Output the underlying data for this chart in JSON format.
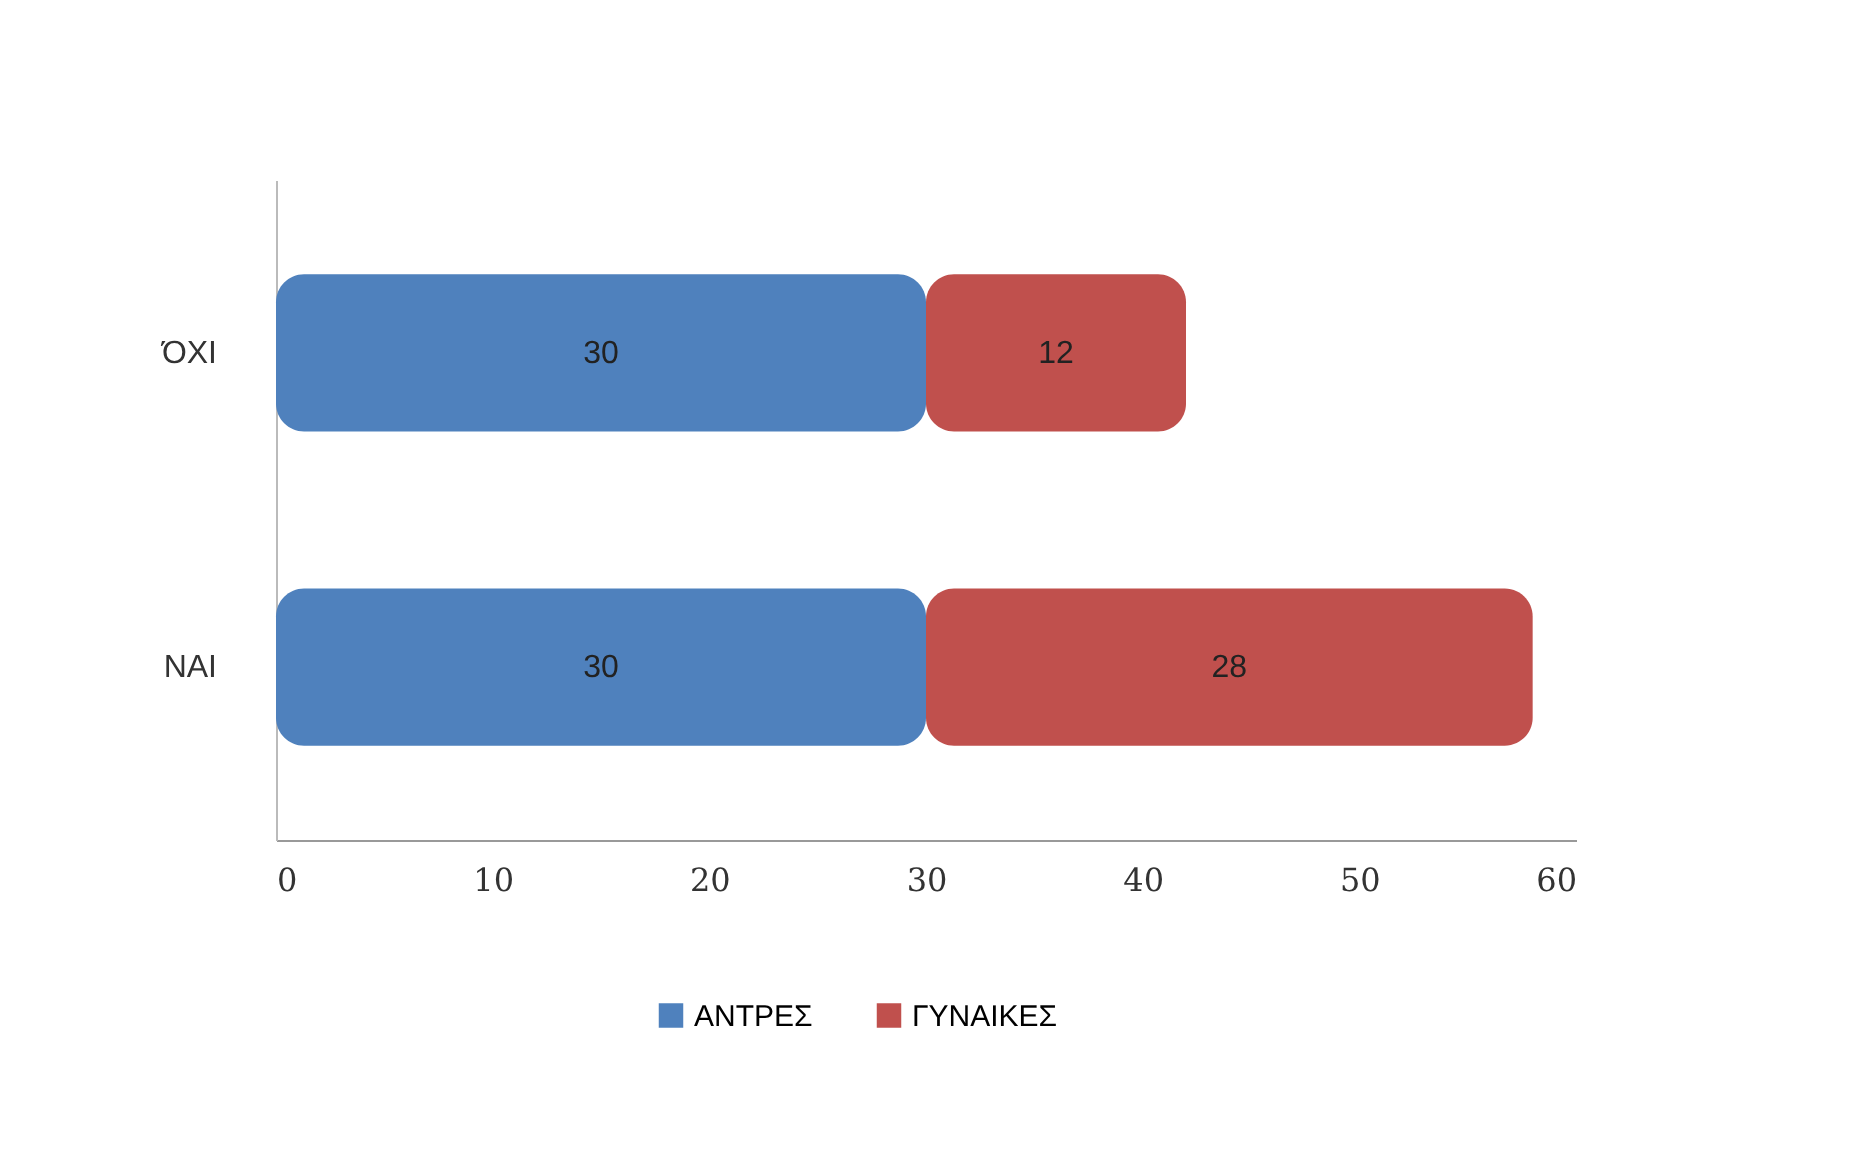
{
  "chart_data": {
    "type": "bar",
    "orientation": "horizontal",
    "stacked": true,
    "categories": [
      "ΌΧΙ",
      "ΝΑΙ"
    ],
    "series": [
      {
        "name": "ΑΝΤΡΕΣ",
        "color": "#4f81bd",
        "values": [
          30,
          30
        ]
      },
      {
        "name": "ΓΥΝΑΙΚΕΣ",
        "color": "#c0504d",
        "values": [
          12,
          28
        ]
      }
    ],
    "xlim": [
      0,
      60
    ],
    "xticks": [
      0,
      10,
      20,
      30,
      40,
      50,
      60
    ],
    "data_labels": true,
    "legend": "bottom",
    "grid": false
  }
}
